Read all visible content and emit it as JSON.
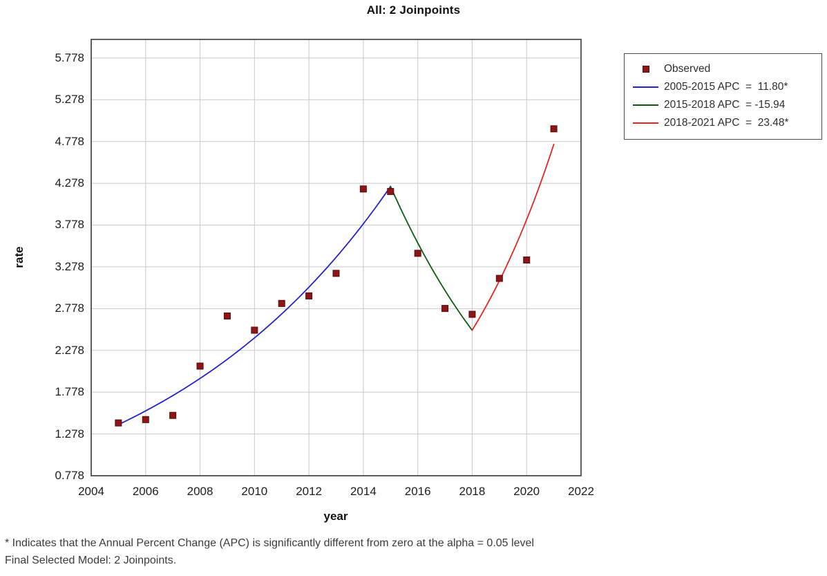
{
  "title": "All: 2 Joinpoints",
  "chart_data": {
    "type": "scatter",
    "title": "All: 2 Joinpoints",
    "xlabel": "year",
    "ylabel": "rate",
    "xlim": [
      2004,
      2022
    ],
    "ylim": [
      0.778,
      6.0
    ],
    "x_ticks": [
      2004,
      2006,
      2008,
      2010,
      2012,
      2014,
      2016,
      2018,
      2020,
      2022
    ],
    "y_tick_labels": [
      "0.778",
      "1.278",
      "1.778",
      "2.278",
      "2.778",
      "3.278",
      "3.778",
      "4.278",
      "4.778",
      "5.278",
      "5.778"
    ],
    "grid": true,
    "legend_position": "outside-right-top",
    "colors": {
      "observed_marker": "#8c1515",
      "observed_marker_edge": "#5a0a0a",
      "segment_blue": "#2222cc",
      "segment_green": "#0d5c0d",
      "segment_red": "#e82222",
      "gridline": "#c9c9c9",
      "plot_border": "#424242"
    },
    "observed": {
      "label": "Observed",
      "years": [
        2005,
        2006,
        2007,
        2008,
        2009,
        2010,
        2011,
        2012,
        2013,
        2014,
        2015,
        2016,
        2017,
        2018,
        2019,
        2020,
        2021
      ],
      "values": [
        1.41,
        1.45,
        1.5,
        2.09,
        2.69,
        2.52,
        2.84,
        2.93,
        3.2,
        4.21,
        4.18,
        3.44,
        2.78,
        2.71,
        3.14,
        3.36,
        4.93
      ]
    },
    "segments": [
      {
        "label": "2005-2015 APC  =  11.80*",
        "start_year": 2005,
        "end_year": 2015,
        "apc": 11.8,
        "start_value": 1.39,
        "color": "#2222cc",
        "significant": true
      },
      {
        "label": "2015-2018 APC  = -15.94",
        "start_year": 2015,
        "end_year": 2018,
        "apc": -15.94,
        "start_value": 4.24,
        "color": "#0d5c0d",
        "significant": false
      },
      {
        "label": "2018-2021 APC  =  23.48*",
        "start_year": 2018,
        "end_year": 2021,
        "apc": 23.48,
        "start_value": 2.52,
        "color": "#e82222",
        "significant": true
      }
    ]
  },
  "footnotes": [
    "* Indicates that the Annual Percent Change (APC) is significantly different from zero at the alpha = 0.05 level",
    "Final Selected Model: 2 Joinpoints."
  ]
}
